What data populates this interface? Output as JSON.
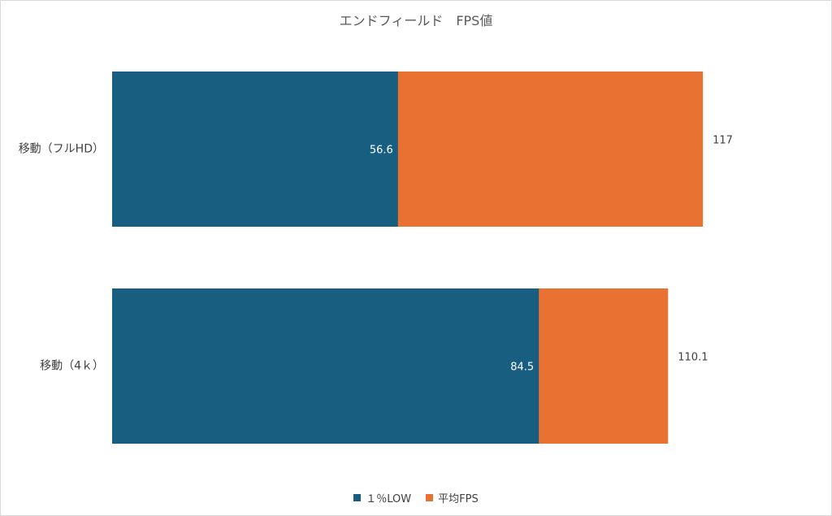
{
  "chart_data": {
    "type": "bar",
    "orientation": "horizontal",
    "stacked": true,
    "title": "エンドフィールド　FPS値",
    "xlabel": "",
    "ylabel": "",
    "categories": [
      "移動（フルHD）",
      "移動（4ｋ）"
    ],
    "series": [
      {
        "name": "１％LOW",
        "color": "#175e80",
        "values": [
          56.6,
          84.5
        ],
        "labels": [
          "56.6",
          "84.5"
        ]
      },
      {
        "name": "平均FPS",
        "color": "#e97132",
        "values": [
          117,
          110.1
        ],
        "labels": [
          "117",
          "110.1"
        ]
      }
    ],
    "value_mode": "overlay-totals",
    "grid": false,
    "legend_position": "bottom"
  }
}
